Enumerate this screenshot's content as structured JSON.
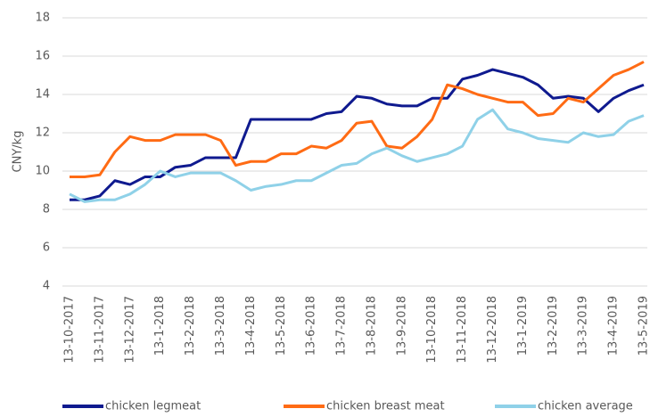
{
  "chart_data": {
    "type": "line",
    "y_label": "CNY/kg",
    "categories": [
      "13-10-2017",
      null,
      "13-11-2017",
      null,
      "13-12-2017",
      null,
      "13-1-2018",
      null,
      "13-2-2018",
      null,
      "13-3-2018",
      null,
      "13-4-2018",
      null,
      "13-5-2018",
      null,
      "13-6-2018",
      null,
      "13-7-2018",
      null,
      "13-8-2018",
      null,
      "13-9-2018",
      null,
      "13-10-2018",
      null,
      "13-11-2018",
      null,
      "13-12-2018",
      null,
      "13-1-2019",
      null,
      "13-2-2019",
      null,
      "13-3-2019",
      null,
      "13-4-2019",
      null,
      "13-5-2019"
    ],
    "series": [
      {
        "name": "chicken legmeat",
        "color": "#0f1a8f",
        "values": [
          8.5,
          8.5,
          8.7,
          9.5,
          9.3,
          9.7,
          9.7,
          10.2,
          10.3,
          10.7,
          10.7,
          10.7,
          12.7,
          12.7,
          12.7,
          12.7,
          12.7,
          13.0,
          13.1,
          13.9,
          13.8,
          13.5,
          13.4,
          13.4,
          13.8,
          13.8,
          14.8,
          15.0,
          15.3,
          15.1,
          14.9,
          14.5,
          13.8,
          13.9,
          13.8,
          13.1,
          13.8,
          14.2,
          14.5
        ]
      },
      {
        "name": "chicken breast meat",
        "color": "#ff6b14",
        "values": [
          9.7,
          9.7,
          9.8,
          11.0,
          11.8,
          11.6,
          11.6,
          11.9,
          11.9,
          11.9,
          11.6,
          10.3,
          10.5,
          10.5,
          10.9,
          10.9,
          11.3,
          11.2,
          11.6,
          12.5,
          12.6,
          11.3,
          11.2,
          11.8,
          12.7,
          14.5,
          14.3,
          14.0,
          13.8,
          13.6,
          13.6,
          12.9,
          13.0,
          13.8,
          13.6,
          14.3,
          15.0,
          15.3,
          15.7
        ]
      },
      {
        "name": "chicken average",
        "color": "#8fd1e8",
        "values": [
          8.8,
          8.4,
          8.5,
          8.5,
          8.8,
          9.3,
          10.0,
          9.7,
          9.9,
          9.9,
          9.9,
          9.5,
          9.0,
          9.2,
          9.3,
          9.5,
          9.5,
          9.9,
          10.3,
          10.4,
          10.9,
          11.2,
          10.8,
          10.5,
          10.7,
          10.9,
          11.3,
          12.7,
          13.2,
          12.2,
          12.0,
          11.7,
          11.6,
          11.5,
          12.0,
          11.8,
          11.9,
          12.6,
          12.9
        ]
      }
    ],
    "ylim": [
      4,
      18
    ],
    "yticks": [
      4,
      6,
      8,
      10,
      12,
      14,
      16,
      18
    ],
    "grid": true,
    "legend": "bottom"
  }
}
